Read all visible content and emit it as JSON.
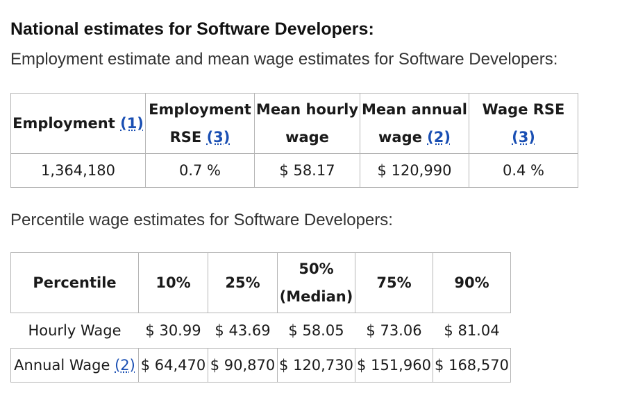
{
  "heading": "National estimates for Software Developers:",
  "employment_subhead": "Employment estimate and mean wage estimates for Software Developers:",
  "employment_table": {
    "headers": {
      "employment": "Employment",
      "employment_ref": "(1)",
      "employment_rse_line1": "Employment",
      "employment_rse_line2": "RSE",
      "employment_rse_ref": "(3)",
      "mean_hourly_line1": "Mean hourly",
      "mean_hourly_line2": "wage",
      "mean_annual_line1": "Mean annual",
      "mean_annual_line2": "wage",
      "mean_annual_ref": "(2)",
      "wage_rse": "Wage RSE",
      "wage_rse_ref": "(3)"
    },
    "row": {
      "employment": "1,364,180",
      "employment_rse": "0.7 %",
      "mean_hourly": "$ 58.17",
      "mean_annual": "$ 120,990",
      "wage_rse": "0.4 %"
    }
  },
  "percentile_subhead": "Percentile wage estimates for Software Developers:",
  "percentile_table": {
    "headers": {
      "percentile": "Percentile",
      "p10": "10%",
      "p25": "25%",
      "p50_line1": "50%",
      "p50_line2": "(Median)",
      "p75": "75%",
      "p90": "90%"
    },
    "hourly": {
      "label": "Hourly Wage",
      "p10": "$ 30.99",
      "p25": "$ 43.69",
      "p50": "$ 58.05",
      "p75": "$ 73.06",
      "p90": "$ 81.04"
    },
    "annual": {
      "label": "Annual Wage",
      "label_ref": "(2)",
      "p10": "$ 64,470",
      "p25": "$ 90,870",
      "p50": "$ 120,730",
      "p75": "$ 151,960",
      "p90": "$ 168,570"
    }
  },
  "colors": {
    "link": "#1a4fb3",
    "border": "#b5b5b5",
    "text": "#1a1a1a"
  }
}
